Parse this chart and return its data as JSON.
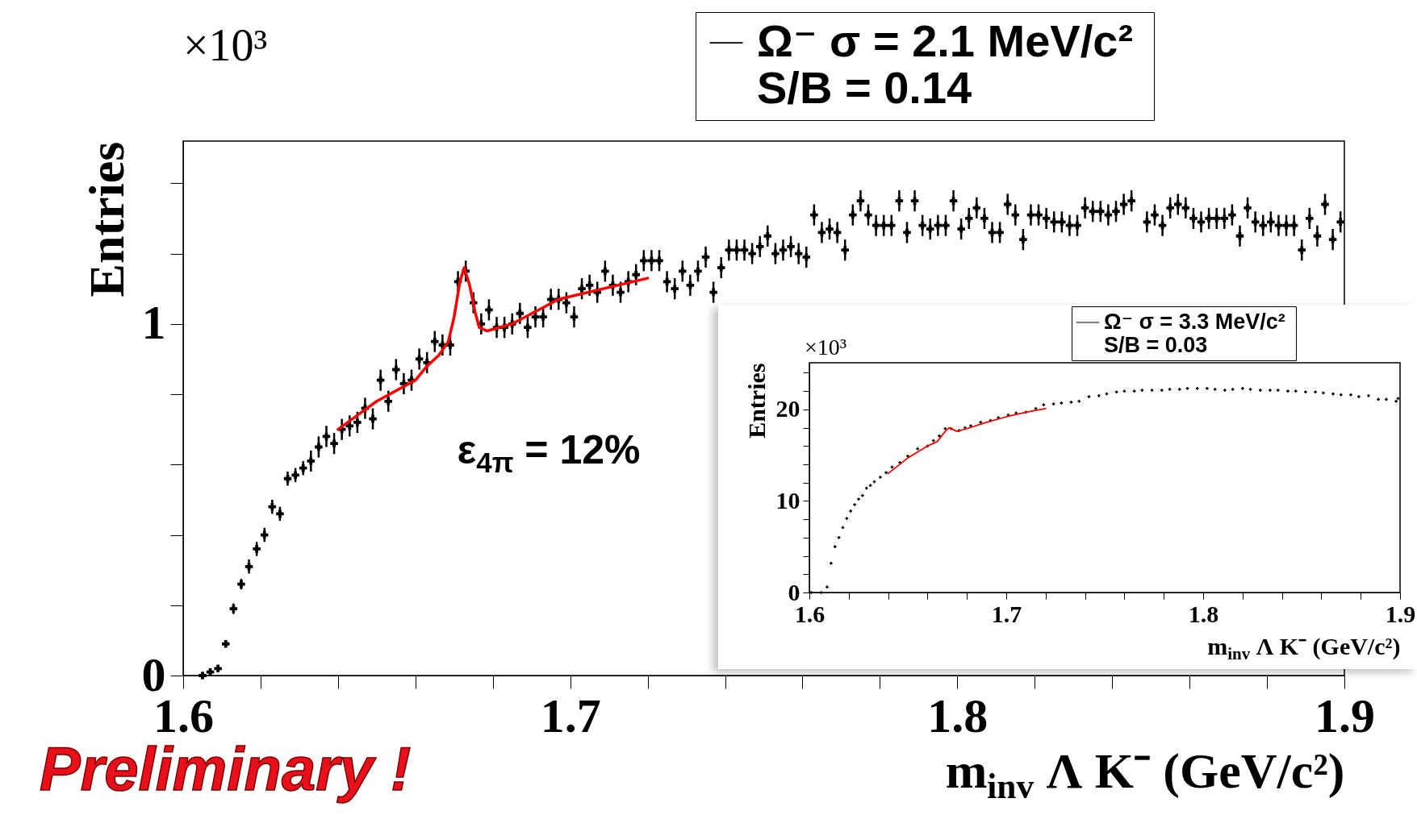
{
  "chart_data": [
    {
      "type": "scatter",
      "xlabel": "m$_{inv}$  Λ K⁻ (GeV/c²)",
      "ylabel": "Entries",
      "annotations": [
        "×10³",
        "S/B = 0.14",
        "ε$_{4π}$ = 12%",
        "Preliminary !"
      ],
      "xlim": [
        1.6,
        1.9
      ],
      "ylim": [
        0,
        1.52
      ],
      "xticks": [
        1.6,
        {
          "value": 1.62,
          "label": null
        },
        {
          "value": 1.64,
          "label": null
        },
        {
          "value": 1.66,
          "label": null
        },
        {
          "value": 1.68,
          "label": null
        },
        1.7,
        {
          "value": 1.72,
          "label": null
        },
        {
          "value": 1.74,
          "label": null
        },
        {
          "value": 1.76,
          "label": null
        },
        {
          "value": 1.78,
          "label": null
        },
        1.8,
        {
          "value": 1.82,
          "label": null
        },
        {
          "value": 1.84,
          "label": null
        },
        {
          "value": 1.86,
          "label": null
        },
        {
          "value": 1.88,
          "label": null
        },
        1.9
      ],
      "yticks": [
        0,
        {
          "value": 0.2,
          "label": null
        },
        {
          "value": 0.4,
          "label": null
        },
        {
          "value": 0.6,
          "label": null
        },
        {
          "value": 0.8,
          "label": null
        },
        1,
        {
          "value": 1.2,
          "label": null
        },
        {
          "value": 1.4,
          "label": null
        }
      ],
      "grid": false,
      "legend": "top right",
      "series": [
        {
          "name": "Ω⁻  σ = 2.1 MeV/c²",
          "color": "#000000",
          "marker": "cross",
          "x": [
            1.605,
            1.607,
            1.609,
            1.611,
            1.613,
            1.615,
            1.617,
            1.619,
            1.621,
            1.623,
            1.625,
            1.627,
            1.629,
            1.631,
            1.633,
            1.635,
            1.637,
            1.639,
            1.641,
            1.643,
            1.645,
            1.647,
            1.649,
            1.651,
            1.653,
            1.655,
            1.657,
            1.659,
            1.661,
            1.663,
            1.665,
            1.667,
            1.669,
            1.671,
            1.673,
            1.675,
            1.677,
            1.679,
            1.681,
            1.683,
            1.685,
            1.687,
            1.689,
            1.691,
            1.693,
            1.695,
            1.697,
            1.699,
            1.701,
            1.703,
            1.705,
            1.707,
            1.709,
            1.711,
            1.713,
            1.715,
            1.717,
            1.719,
            1.721,
            1.723,
            1.725,
            1.727,
            1.729,
            1.731,
            1.733,
            1.735,
            1.737,
            1.739,
            1.741,
            1.743,
            1.745,
            1.747,
            1.749,
            1.751,
            1.753,
            1.755,
            1.757,
            1.759,
            1.761,
            1.763,
            1.765,
            1.767,
            1.769,
            1.771,
            1.773,
            1.775,
            1.777,
            1.779,
            1.781,
            1.783,
            1.785,
            1.787,
            1.789,
            1.791,
            1.793,
            1.795,
            1.797,
            1.799,
            1.801,
            1.803,
            1.805,
            1.807,
            1.809,
            1.811,
            1.813,
            1.815,
            1.817,
            1.819,
            1.821,
            1.823,
            1.825,
            1.827,
            1.829,
            1.831,
            1.833,
            1.835,
            1.837,
            1.839,
            1.841,
            1.843,
            1.845,
            1.849,
            1.851,
            1.853,
            1.855,
            1.857,
            1.859,
            1.861,
            1.863,
            1.865,
            1.867,
            1.869,
            1.871,
            1.873,
            1.875,
            1.877,
            1.879,
            1.881,
            1.883,
            1.885,
            1.887,
            1.889,
            1.891,
            1.893,
            1.895,
            1.897,
            1.899
          ],
          "values": [
            0.0,
            0.01,
            0.02,
            0.09,
            0.19,
            0.26,
            0.31,
            0.36,
            0.4,
            0.48,
            0.46,
            0.56,
            0.57,
            0.59,
            0.61,
            0.65,
            0.68,
            0.66,
            0.7,
            0.71,
            0.72,
            0.76,
            0.73,
            0.84,
            0.78,
            0.87,
            0.83,
            0.84,
            0.9,
            0.89,
            0.95,
            0.94,
            0.94,
            1.12,
            1.15,
            1.06,
            1.0,
            1.04,
            0.99,
            0.99,
            1.0,
            1.03,
            0.99,
            1.02,
            1.02,
            1.07,
            1.07,
            1.06,
            1.02,
            1.1,
            1.11,
            1.09,
            1.15,
            1.11,
            1.09,
            1.12,
            1.14,
            1.18,
            1.18,
            1.18,
            1.12,
            1.1,
            1.15,
            1.11,
            1.15,
            1.19,
            1.09,
            1.16,
            1.21,
            1.21,
            1.21,
            1.2,
            1.22,
            1.25,
            1.2,
            1.21,
            1.22,
            1.2,
            1.19,
            1.31,
            1.26,
            1.27,
            1.26,
            1.21,
            1.31,
            1.35,
            1.31,
            1.28,
            1.28,
            1.28,
            1.35,
            1.26,
            1.35,
            1.28,
            1.27,
            1.28,
            1.28,
            1.35,
            1.27,
            1.3,
            1.33,
            1.3,
            1.26,
            1.26,
            1.34,
            1.31,
            1.24,
            1.31,
            1.31,
            1.3,
            1.29,
            1.29,
            1.28,
            1.28,
            1.33,
            1.32,
            1.32,
            1.31,
            1.32,
            1.34,
            1.35,
            1.29,
            1.31,
            1.28,
            1.33,
            1.34,
            1.33,
            1.3,
            1.29,
            1.3,
            1.3,
            1.3,
            1.31,
            1.25,
            1.33,
            1.29,
            1.28,
            1.29,
            1.28,
            1.28,
            1.28,
            1.21,
            1.3,
            1.25,
            1.34,
            1.24,
            1.29
          ],
          "errors": [
            null,
            0.005,
            0.005,
            0.01,
            0.015,
            0.015,
            0.02,
            0.02,
            0.02,
            0.02,
            0.02,
            0.02,
            0.02,
            0.02,
            0.03,
            0.03,
            0.03,
            0.03,
            0.03,
            0.03,
            0.03,
            0.03,
            0.03,
            0.03,
            0.03,
            0.03,
            0.03,
            0.03,
            0.03,
            0.03,
            0.03,
            0.03,
            0.03,
            0.03,
            0.03,
            0.03,
            0.03,
            0.03,
            0.03,
            0.03,
            0.03,
            0.03,
            0.03,
            0.03,
            0.03,
            0.03,
            0.03,
            0.03,
            0.03,
            0.03,
            0.03,
            0.03,
            0.03,
            0.03,
            0.03,
            0.03,
            0.03,
            0.03,
            0.03,
            0.03,
            0.03,
            0.03,
            0.03,
            0.03,
            0.03,
            0.03,
            0.03,
            0.03,
            0.03,
            0.03,
            0.03,
            0.03,
            0.03,
            0.03,
            0.03,
            0.03,
            0.03,
            0.03,
            0.03,
            0.03,
            0.03,
            0.03,
            0.03,
            0.03,
            0.03,
            0.03,
            0.03,
            0.03,
            0.03,
            0.03,
            0.03,
            0.03,
            0.03,
            0.03,
            0.03,
            0.03,
            0.03,
            0.03,
            0.03,
            0.03,
            0.03,
            0.03,
            0.03,
            0.03,
            0.03,
            0.03,
            0.03,
            0.03,
            0.03,
            0.03,
            0.03,
            0.03,
            0.03,
            0.03,
            0.03,
            0.03,
            0.03,
            0.03,
            0.03,
            0.03,
            0.03,
            0.03,
            0.03,
            0.03,
            0.03,
            0.03,
            0.03,
            0.03,
            0.03,
            0.03,
            0.03,
            0.03,
            0.03,
            0.03,
            0.03,
            0.03,
            0.03,
            0.03,
            0.03,
            0.03,
            0.03,
            0.03,
            0.03,
            0.03,
            0.03,
            0.03,
            0.03
          ]
        },
        {
          "type": "line",
          "color": "#ff0000",
          "x": [
            1.64,
            1.65,
            1.66,
            1.663,
            1.666,
            1.6685,
            1.67,
            1.6715,
            1.6726,
            1.674,
            1.6755,
            1.6765,
            1.6785,
            1.685,
            1.697,
            1.72
          ],
          "values": [
            0.7,
            0.78,
            0.84,
            0.88,
            0.91,
            0.95,
            1.02,
            1.12,
            1.16,
            1.11,
            1.03,
            0.99,
            0.98,
            1.0,
            1.07,
            1.13
          ]
        }
      ]
    },
    {
      "type": "scatter",
      "xlabel": "m$_{inv}$  Λ K⁻ (GeV/c²)",
      "ylabel": "Entries",
      "annotations": [
        "×10³",
        "S/B = 0.03"
      ],
      "xlim": [
        1.6,
        1.9
      ],
      "ylim": [
        0,
        25.1
      ],
      "xticks": [
        1.6,
        {
          "value": 1.62,
          "label": null
        },
        {
          "value": 1.64,
          "label": null
        },
        {
          "value": 1.66,
          "label": null
        },
        {
          "value": 1.68,
          "label": null
        },
        1.7,
        {
          "value": 1.72,
          "label": null
        },
        {
          "value": 1.74,
          "label": null
        },
        {
          "value": 1.76,
          "label": null
        },
        {
          "value": 1.78,
          "label": null
        },
        1.8,
        {
          "value": 1.82,
          "label": null
        },
        {
          "value": 1.84,
          "label": null
        },
        {
          "value": 1.86,
          "label": null
        },
        {
          "value": 1.88,
          "label": null
        },
        1.9
      ],
      "yticks": [
        0,
        {
          "value": 2,
          "label": null
        },
        {
          "value": 4,
          "label": null
        },
        {
          "value": 6,
          "label": null
        },
        {
          "value": 8,
          "label": null
        },
        10,
        {
          "value": 12,
          "label": null
        },
        {
          "value": 14,
          "label": null
        },
        {
          "value": 16,
          "label": null
        },
        {
          "value": 18,
          "label": null
        },
        20,
        {
          "value": 22,
          "label": null
        },
        {
          "value": 24,
          "label": null
        }
      ],
      "grid": false,
      "legend": "top right",
      "series": [
        {
          "name": "Ω⁻  σ = 3.3 MeV/c²",
          "color": "#000000",
          "marker": "cross",
          "x": [
            1.601,
            1.606,
            1.609,
            1.611,
            1.613,
            1.615,
            1.617,
            1.619,
            1.621,
            1.623,
            1.625,
            1.627,
            1.629,
            1.631,
            1.633,
            1.636,
            1.639,
            1.642,
            1.646,
            1.65,
            1.655,
            1.66,
            1.663,
            1.666,
            1.669,
            1.672,
            1.676,
            1.679,
            1.682,
            1.687,
            1.692,
            1.696,
            1.701,
            1.705,
            1.71,
            1.715,
            1.719,
            1.724,
            1.728,
            1.733,
            1.737,
            1.742,
            1.747,
            1.751,
            1.756,
            1.76,
            1.765,
            1.769,
            1.774,
            1.779,
            1.783,
            1.788,
            1.792,
            1.797,
            1.802,
            1.806,
            1.811,
            1.815,
            1.82,
            1.824,
            1.829,
            1.834,
            1.838,
            1.843,
            1.847,
            1.852,
            1.857,
            1.861,
            1.866,
            1.87,
            1.875,
            1.879,
            1.884,
            1.889,
            1.893,
            1.898,
            1.899
          ],
          "values": [
            0.0,
            0.0,
            0.6,
            3.2,
            5.0,
            6.0,
            7.1,
            8.1,
            8.9,
            9.6,
            10.2,
            10.6,
            11.4,
            11.7,
            12.1,
            12.6,
            13.1,
            13.7,
            14.2,
            14.9,
            15.7,
            16.0,
            16.6,
            17.1,
            17.9,
            17.9,
            17.7,
            18.0,
            18.2,
            18.6,
            18.8,
            19.1,
            19.4,
            19.6,
            19.7,
            20.1,
            20.5,
            20.6,
            20.7,
            20.8,
            20.9,
            21.4,
            21.5,
            21.7,
            21.9,
            22.0,
            22.0,
            22.1,
            22.1,
            22.1,
            22.2,
            22.2,
            22.3,
            22.3,
            22.3,
            22.2,
            22.1,
            22.2,
            22.3,
            22.2,
            22.1,
            22.1,
            22.1,
            22.0,
            22.0,
            21.9,
            21.9,
            21.8,
            21.7,
            21.6,
            21.6,
            21.4,
            21.5,
            21.1,
            21.1,
            20.9,
            21.2
          ]
        },
        {
          "type": "line",
          "color": "#ff0000",
          "x": [
            1.64,
            1.65,
            1.66,
            1.665,
            1.669,
            1.671,
            1.673,
            1.675,
            1.68,
            1.69,
            1.7,
            1.71,
            1.72
          ],
          "values": [
            13.0,
            14.7,
            16.0,
            16.5,
            17.6,
            18.0,
            17.8,
            17.6,
            17.9,
            18.6,
            19.2,
            19.7,
            20.1
          ]
        }
      ]
    }
  ]
}
